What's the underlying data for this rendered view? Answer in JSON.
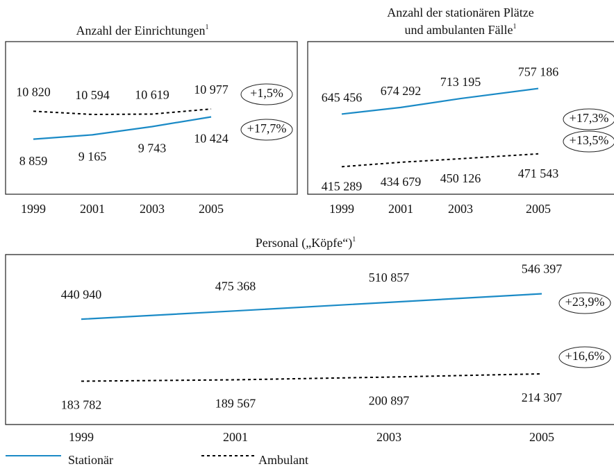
{
  "chart_data": [
    {
      "type": "line",
      "title": "Anzahl der Einrichtungen",
      "title_note": "1",
      "categories": [
        "1999",
        "2001",
        "2003",
        "2005"
      ],
      "series": [
        {
          "color": "#1a8ac6",
          "dash": "none",
          "values": [
            8859,
            9165,
            9743,
            10424
          ],
          "value_labels": [
            "8 859",
            "9 165",
            "9 743",
            "10 424"
          ],
          "change": "+17,7%"
        },
        {
          "color": "#000000",
          "dash": "4 4",
          "values": [
            10820,
            10594,
            10619,
            10977
          ],
          "value_labels": [
            "10 820",
            "10 594",
            "10 619",
            "10 977"
          ],
          "change": "+1,5%"
        }
      ],
      "ylim": [
        5000,
        15700
      ]
    },
    {
      "type": "line",
      "title": [
        "Anzahl der stationären Plätze",
        "und ambulanten Fälle"
      ],
      "title_note": "1",
      "categories": [
        "1999",
        "2001",
        "2003",
        "2005"
      ],
      "series": [
        {
          "color": "#1a8ac6",
          "dash": "none",
          "values": [
            645456,
            674292,
            713195,
            757186
          ],
          "value_labels": [
            "645 456",
            "674 292",
            "713 195",
            "757 186"
          ],
          "change": "+17,3%"
        },
        {
          "color": "#000000",
          "dash": "4 4",
          "values": [
            415289,
            434679,
            450126,
            471543
          ],
          "value_labels": [
            "415 289",
            "434 679",
            "450 126",
            "471 543"
          ],
          "change": "+13,5%"
        }
      ],
      "ylim": [
        295000,
        962000
      ]
    },
    {
      "type": "line",
      "title": "Personal („Köpfe“)",
      "title_note": "1",
      "categories": [
        "1999",
        "2001",
        "2003",
        "2005"
      ],
      "series": [
        {
          "color": "#1a8ac6",
          "dash": "none",
          "values": [
            440940,
            475368,
            510857,
            546397
          ],
          "value_labels": [
            "440 940",
            "475 368",
            "510 857",
            "546 397"
          ],
          "change": "+23,9%"
        },
        {
          "color": "#000000",
          "dash": "4 4",
          "values": [
            183782,
            189567,
            200897,
            214307
          ],
          "value_labels": [
            "183 782",
            "189 567",
            "200 897",
            "214 307"
          ],
          "change": "+16,6%"
        }
      ],
      "ylim": [
        4000,
        709000
      ]
    }
  ],
  "legend": [
    {
      "name": "Stationär",
      "color": "#1a8ac6",
      "dash": "none"
    },
    {
      "name": "Ambulant",
      "color": "#000000",
      "dash": "4 4"
    }
  ]
}
